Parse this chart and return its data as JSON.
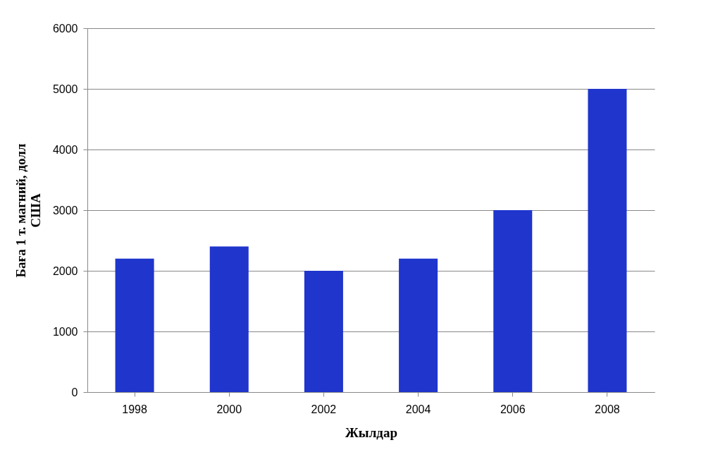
{
  "chart_data": {
    "type": "bar",
    "xlabel": "Жылдар",
    "ylabel": "Баға 1 т. магний, долл США",
    "categories": [
      "1998",
      "2000",
      "2002",
      "2004",
      "2006",
      "2008"
    ],
    "values": [
      2200,
      2400,
      2000,
      2200,
      3000,
      5000
    ],
    "color": "#1f35cc",
    "ylim": [
      0,
      6000
    ],
    "yticks": [
      0,
      1000,
      2000,
      3000,
      4000,
      5000,
      6000
    ],
    "grid": "y"
  }
}
